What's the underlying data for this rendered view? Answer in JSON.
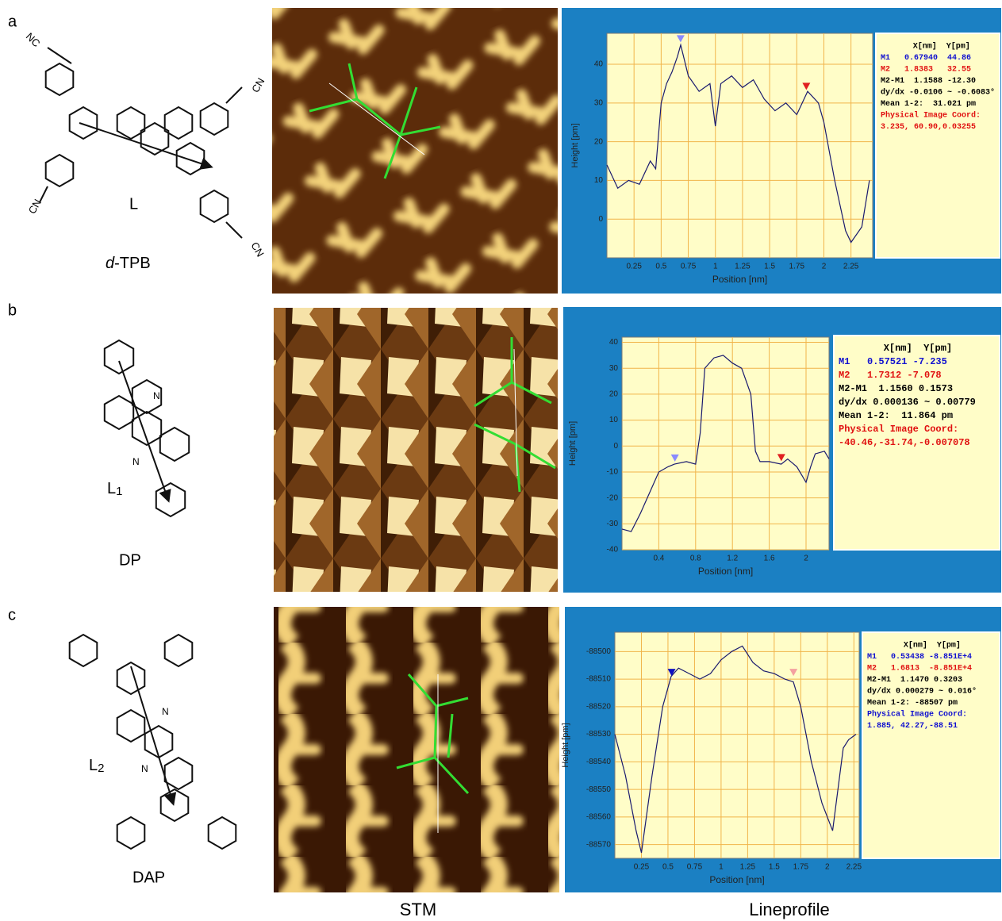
{
  "panel_labels": [
    "a",
    "b",
    "c"
  ],
  "column_titles": {
    "stm": "STM",
    "lineprofile": "Lineprofile"
  },
  "molecules": [
    {
      "groups": [
        "NC",
        "CN",
        "CN",
        "CN"
      ],
      "ligand": "L",
      "name_italic": "d",
      "name": "-TPB"
    },
    {
      "atoms": [
        "N",
        "N"
      ],
      "ligand": "L",
      "ligand_sub": "1",
      "name": "DP"
    },
    {
      "atoms": [
        "N",
        "N"
      ],
      "ligand": "L",
      "ligand_sub": "2",
      "name": "DAP"
    }
  ],
  "chart_data": [
    {
      "type": "line",
      "x_label": "Position [nm]",
      "y_label": "Height [pm]",
      "color": "#1a1a6e",
      "grid": true,
      "x": [
        0,
        0.1,
        0.2,
        0.3,
        0.4,
        0.45,
        0.5,
        0.55,
        0.6,
        0.65,
        0.68,
        0.75,
        0.85,
        0.95,
        1.0,
        1.05,
        1.15,
        1.25,
        1.35,
        1.45,
        1.55,
        1.65,
        1.75,
        1.85,
        1.95,
        2.0,
        2.1,
        2.2,
        2.25,
        2.35,
        2.42
      ],
      "values": [
        14,
        8,
        10,
        9,
        15,
        13,
        30,
        35,
        38,
        42,
        45,
        37,
        33,
        35,
        24,
        35,
        37,
        34,
        36,
        31,
        28,
        30,
        27,
        33,
        30,
        25,
        10,
        -3,
        -6,
        -2,
        10
      ],
      "xlim": [
        0,
        2.45
      ],
      "ylim": [
        -10,
        48
      ],
      "xticks": [
        0.25,
        0.5,
        0.75,
        1,
        1.25,
        1.5,
        1.75,
        2,
        2.25
      ],
      "yticks": [
        0,
        10,
        20,
        30,
        40
      ],
      "markers": [
        {
          "x": 0.6794,
          "y": 44.86,
          "color": "#8a8aff"
        },
        {
          "x": 1.8383,
          "y": 32.55,
          "color": "#e02020"
        }
      ],
      "readout": [
        {
          "text": "X[nm]  Y[pm]",
          "color": "#000000"
        },
        {
          "text": "M1   0.67940  44.86",
          "color": "#1010d0"
        },
        {
          "text": "M2   1.8383   32.55",
          "color": "#e01010"
        },
        {
          "text": "M2-M1  1.1588 -12.30",
          "color": "#000000"
        },
        {
          "text": "dy/dx -0.0106 ~ -0.6083°",
          "color": "#000000"
        },
        {
          "text": "Mean 1-2:  31.021 pm",
          "color": "#000000"
        },
        {
          "text": "Physical Image Coord:",
          "color": "#e01010"
        },
        {
          "text": "3.235, 60.90,0.03255",
          "color": "#e01010"
        }
      ]
    },
    {
      "type": "line",
      "x_label": "Position [nm]",
      "y_label": "Height [pm]",
      "color": "#1a1a6e",
      "grid": true,
      "x": [
        0,
        0.1,
        0.2,
        0.3,
        0.4,
        0.5,
        0.57,
        0.7,
        0.8,
        0.85,
        0.9,
        1.0,
        1.1,
        1.2,
        1.3,
        1.4,
        1.45,
        1.5,
        1.6,
        1.73,
        1.8,
        1.9,
        2.0,
        2.05,
        2.1,
        2.2,
        2.25
      ],
      "values": [
        -32,
        -33,
        -26,
        -18,
        -10,
        -8,
        -7,
        -6,
        -7,
        5,
        30,
        34,
        35,
        32,
        30,
        20,
        -2,
        -6,
        -6,
        -7,
        -5,
        -8,
        -14,
        -8,
        -3,
        -2,
        -5
      ],
      "xlim": [
        0,
        2.25
      ],
      "ylim": [
        -40,
        42
      ],
      "xticks": [
        0.4,
        0.8,
        1.2,
        1.6,
        2
      ],
      "yticks": [
        -40,
        -30,
        -20,
        -10,
        0,
        10,
        20,
        30,
        40
      ],
      "markers": [
        {
          "x": 0.57521,
          "y": -7.235,
          "color": "#8a8aff"
        },
        {
          "x": 1.7312,
          "y": -7.078,
          "color": "#e02020"
        }
      ],
      "readout": [
        {
          "text": "X[nm]  Y[pm]",
          "color": "#000000"
        },
        {
          "text": "M1   0.57521 -7.235",
          "color": "#1010d0"
        },
        {
          "text": "M2   1.7312 -7.078",
          "color": "#e01010"
        },
        {
          "text": "M2-M1  1.1560 0.1573",
          "color": "#000000"
        },
        {
          "text": "dy/dx 0.000136 ~ 0.00779",
          "color": "#000000"
        },
        {
          "text": "Mean 1-2:  11.864 pm",
          "color": "#000000"
        },
        {
          "text": "Physical Image Coord:",
          "color": "#e01010"
        },
        {
          "text": "-40.46,-31.74,-0.007078",
          "color": "#e01010"
        }
      ]
    },
    {
      "type": "line",
      "x_label": "Position [nm]",
      "y_label": "Height [pm]",
      "color": "#1a1a6e",
      "grid": true,
      "x": [
        0,
        0.1,
        0.2,
        0.25,
        0.35,
        0.45,
        0.53,
        0.6,
        0.7,
        0.8,
        0.9,
        1.0,
        1.1,
        1.2,
        1.3,
        1.4,
        1.5,
        1.6,
        1.68,
        1.75,
        1.85,
        1.95,
        2.05,
        2.1,
        2.15,
        2.2,
        2.27
      ],
      "values": [
        -88530,
        -88545,
        -88565,
        -88573,
        -88545,
        -88520,
        -88509,
        -88506,
        -88508,
        -88510,
        -88508,
        -88503,
        -88500,
        -88498,
        -88504,
        -88507,
        -88508,
        -88510,
        -88511,
        -88520,
        -88540,
        -88555,
        -88565,
        -88550,
        -88535,
        -88532,
        -88530
      ],
      "xlim": [
        0,
        2.3
      ],
      "ylim": [
        -88575,
        -88493
      ],
      "xticks": [
        0.25,
        0.5,
        0.75,
        1,
        1.25,
        1.5,
        1.75,
        2,
        2.25
      ],
      "yticks": [
        -88570,
        -88560,
        -88550,
        -88540,
        -88530,
        -88520,
        -88510,
        -88500
      ],
      "markers": [
        {
          "x": 0.53438,
          "y": -88510,
          "color": "#1010c0"
        },
        {
          "x": 1.6813,
          "y": -88510,
          "color": "#f4a0a0"
        }
      ],
      "readout": [
        {
          "text": "X[nm]  Y[pm]",
          "color": "#000000"
        },
        {
          "text": "M1   0.53438 -8.851E+4",
          "color": "#1010d0"
        },
        {
          "text": "M2   1.6813  -8.851E+4",
          "color": "#e01010"
        },
        {
          "text": "M2-M1  1.1470 0.3203",
          "color": "#000000"
        },
        {
          "text": "dy/dx 0.000279 ~ 0.016°",
          "color": "#000000"
        },
        {
          "text": "Mean 1-2: -88507 pm",
          "color": "#000000"
        },
        {
          "text": "Physical Image Coord:",
          "color": "#1010d0"
        },
        {
          "text": "1.885, 42.27,-88.51",
          "color": "#1010d0"
        }
      ]
    }
  ]
}
